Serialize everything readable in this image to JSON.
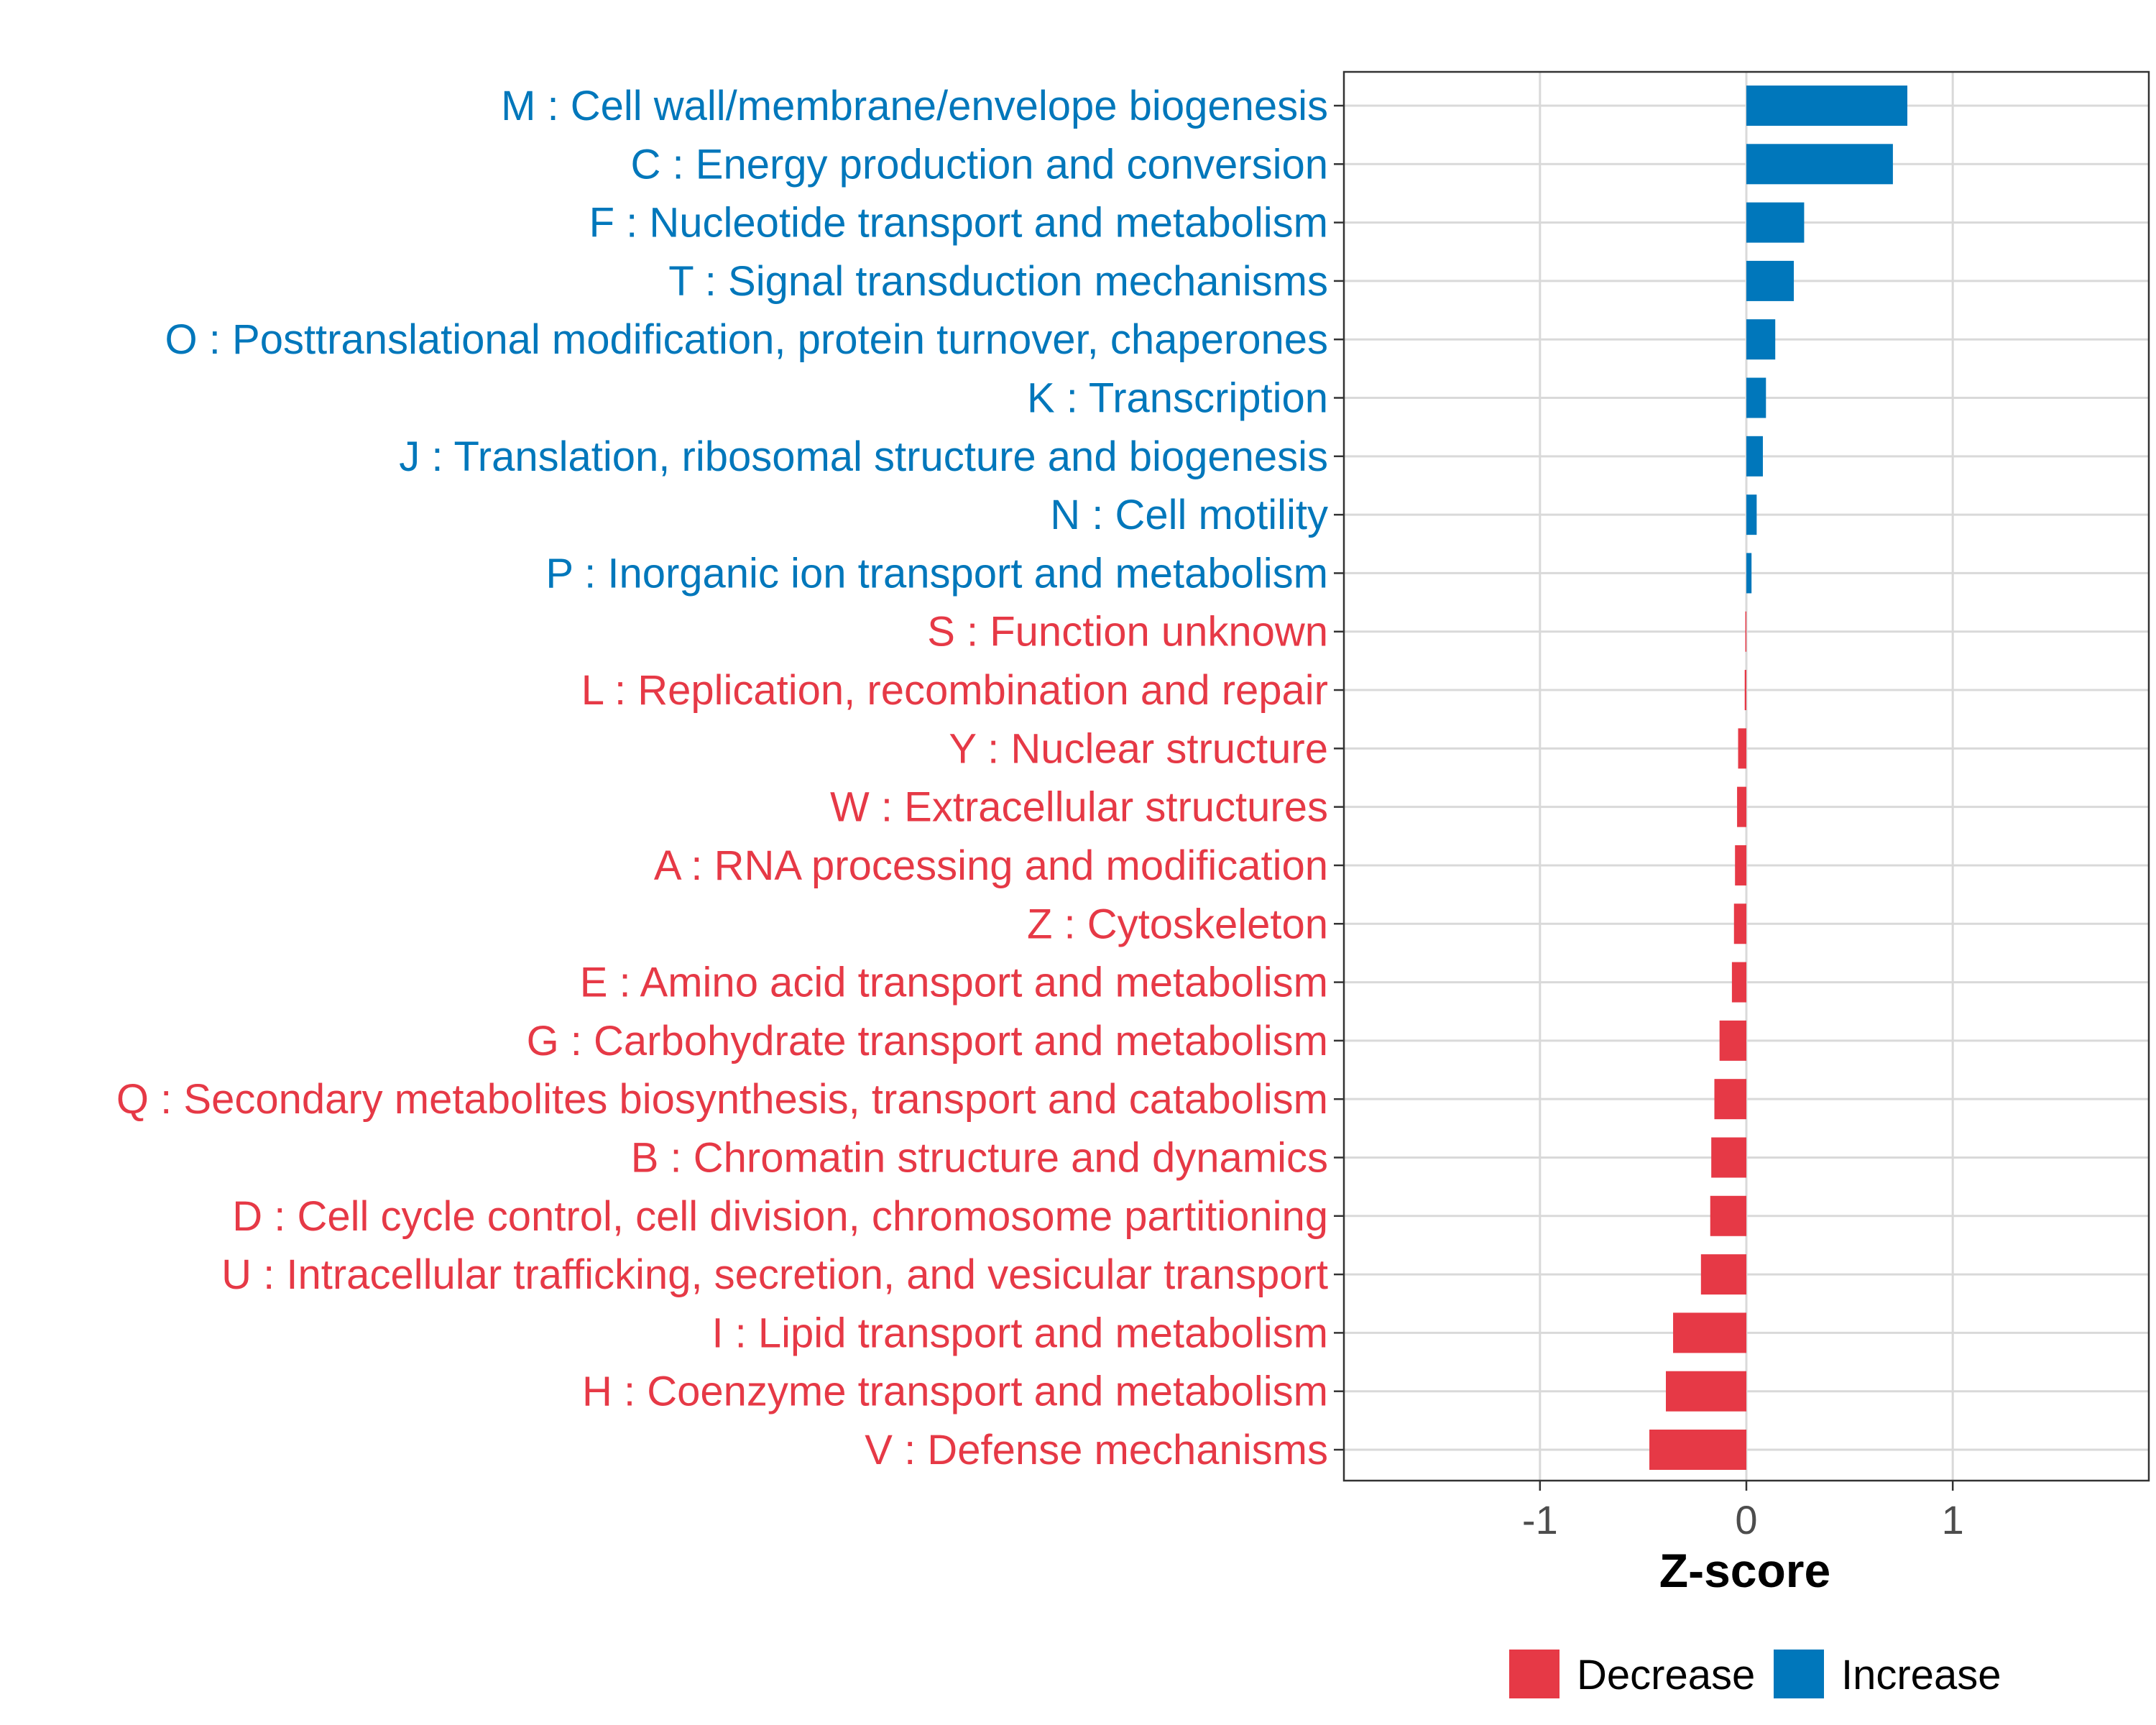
{
  "chart_data": {
    "type": "bar",
    "orientation": "horizontal",
    "title": "",
    "xlabel": "Z-score",
    "ylabel": "",
    "xlim": [
      -1.95,
      1.95
    ],
    "xticks": [
      -1,
      0,
      1
    ],
    "xtick_labels": [
      "-1",
      "0",
      "1"
    ],
    "grid": true,
    "legend_position": "bottom",
    "colors": {
      "Increase": "#0077bb",
      "Decrease": "#e63946"
    },
    "legend": [
      {
        "name": "Decrease",
        "color": "#e63946"
      },
      {
        "name": "Increase",
        "color": "#0077bb"
      }
    ],
    "categories": [
      "M : Cell wall/membrane/envelope biogenesis",
      "C : Energy production and conversion",
      "F : Nucleotide transport and metabolism",
      "T : Signal transduction mechanisms",
      "O : Posttranslational modification, protein turnover, chaperones",
      "K : Transcription",
      "J : Translation, ribosomal structure and biogenesis",
      "N : Cell motility",
      "P : Inorganic ion transport and metabolism",
      "S : Function unknown",
      "L : Replication, recombination and repair",
      "Y : Nuclear structure",
      "W : Extracellular structures",
      "A : RNA processing and modification",
      "Z : Cytoskeleton",
      "E : Amino acid transport and metabolism",
      "G : Carbohydrate transport and metabolism",
      "Q : Secondary metabolites biosynthesis, transport and catabolism",
      "B : Chromatin structure and dynamics",
      "D : Cell cycle control, cell division, chromosome partitioning",
      "U : Intracellular trafficking, secretion, and vesicular transport",
      "I : Lipid transport and metabolism",
      "H : Coenzyme transport and metabolism",
      "V : Defense mechanisms"
    ],
    "values": [
      0.78,
      0.71,
      0.28,
      0.23,
      0.14,
      0.095,
      0.08,
      0.05,
      0.025,
      -0.005,
      -0.008,
      -0.04,
      -0.045,
      -0.055,
      -0.06,
      -0.07,
      -0.13,
      -0.155,
      -0.17,
      -0.175,
      -0.22,
      -0.355,
      -0.39,
      -0.47
    ],
    "groups": [
      "Increase",
      "Increase",
      "Increase",
      "Increase",
      "Increase",
      "Increase",
      "Increase",
      "Increase",
      "Increase",
      "Decrease",
      "Decrease",
      "Decrease",
      "Decrease",
      "Decrease",
      "Decrease",
      "Decrease",
      "Decrease",
      "Decrease",
      "Decrease",
      "Decrease",
      "Decrease",
      "Decrease",
      "Decrease",
      "Decrease"
    ]
  }
}
